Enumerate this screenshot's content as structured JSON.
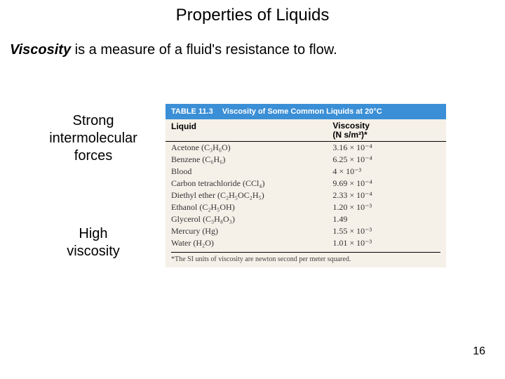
{
  "title": "Properties of Liquids",
  "definition": {
    "term": "Viscosity",
    "rest": " is a measure of a fluid's resistance to flow."
  },
  "left": {
    "block1_l1": "Strong",
    "block1_l2": "intermolecular",
    "block1_l3": "forces",
    "block2_l1": "High",
    "block2_l2": "viscosity"
  },
  "table": {
    "header_num": "TABLE 11.3",
    "header_title": "Viscosity of Some Common Liquids at 20°C",
    "col1": "Liquid",
    "col2_l1": "Viscosity",
    "col2_l2": "(N s/m²)*",
    "rows": [
      {
        "name": "Acetone (C₃H₆O)",
        "val": "3.16 × 10⁻⁴"
      },
      {
        "name": "Benzene (C₆H₆)",
        "val": "6.25 × 10⁻⁴"
      },
      {
        "name": "Blood",
        "val": "4 × 10⁻³"
      },
      {
        "name": "Carbon tetrachloride (CCl₄)",
        "val": "9.69 × 10⁻⁴"
      },
      {
        "name": "Diethyl ether (C₂H₅OC₂H₅)",
        "val": "2.33 × 10⁻⁴"
      },
      {
        "name": "Ethanol (C₂H₅OH)",
        "val": "1.20 × 10⁻³"
      },
      {
        "name": "Glycerol (C₃H₈O₃)",
        "val": "1.49"
      },
      {
        "name": "Mercury (Hg)",
        "val": "1.55 × 10⁻³"
      },
      {
        "name": "Water (H₂O)",
        "val": "1.01 × 10⁻³"
      }
    ],
    "footnote": "*The SI units of viscosity are newton second per meter squared."
  },
  "page_number": "16",
  "colors": {
    "table_header_bg": "#3b8fd6",
    "table_bg": "#f5f0e8"
  }
}
